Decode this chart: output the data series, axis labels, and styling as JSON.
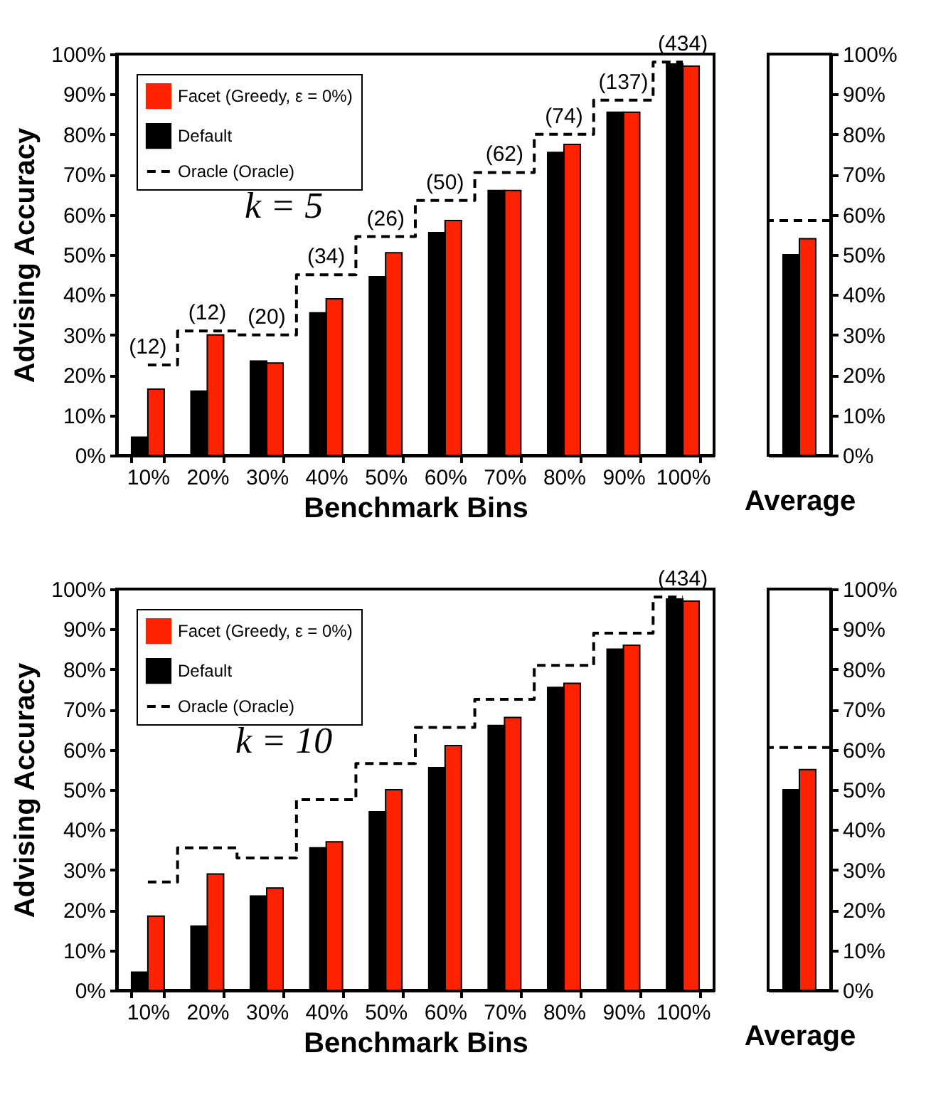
{
  "chart_data": [
    {
      "type": "bar",
      "categories": [
        "10%",
        "20%",
        "30%",
        "40%",
        "50%",
        "60%",
        "70%",
        "80%",
        "90%",
        "100%"
      ],
      "xlabel": "Benchmark Bins",
      "ylabel": "Advising Accuracy",
      "ylim": [
        0,
        100
      ],
      "yticks": [
        {
          "value": 0,
          "label": "0%"
        },
        {
          "value": 10,
          "label": "10%"
        },
        {
          "value": 20,
          "label": "20%"
        },
        {
          "value": 30,
          "label": "30%"
        },
        {
          "value": 40,
          "label": "40%"
        },
        {
          "value": 50,
          "label": "50%"
        },
        {
          "value": 60,
          "label": "60%"
        },
        {
          "value": 70,
          "label": "70%"
        },
        {
          "value": 80,
          "label": "80%"
        },
        {
          "value": 90,
          "label": "90%"
        },
        {
          "value": 100,
          "label": "100%"
        }
      ],
      "legend": "top left",
      "series": [
        {
          "name": "Facet (Greedy, ε = 0%)",
          "color": "#ff2200",
          "values": [
            16.5,
            30,
            23,
            39,
            50.5,
            58.5,
            66,
            77.5,
            85.5,
            97
          ]
        },
        {
          "name": "Default",
          "color": "#000000",
          "values": [
            4.5,
            16,
            23.5,
            35.5,
            44.5,
            55.5,
            66,
            75.5,
            85.5,
            97.5
          ]
        },
        {
          "name": "Oracle (Oracle)",
          "type": "step",
          "color": "#000000",
          "line_style": "dashed",
          "values": [
            22.5,
            31,
            30,
            45,
            54.5,
            63.5,
            70.5,
            80,
            88.5,
            98
          ]
        }
      ],
      "annotations": [
        "k = 5",
        {
          "text": "(12)",
          "x": "10%",
          "y": 22.5
        },
        {
          "text": "(12)",
          "x": "20%",
          "y": 31
        },
        {
          "text": "(20)",
          "x": "30%",
          "y": 30
        },
        {
          "text": "(34)",
          "x": "40%",
          "y": 45
        },
        {
          "text": "(26)",
          "x": "50%",
          "y": 54.5
        },
        {
          "text": "(50)",
          "x": "60%",
          "y": 63.5
        },
        {
          "text": "(62)",
          "x": "70%",
          "y": 70.5
        },
        {
          "text": "(74)",
          "x": "80%",
          "y": 80
        },
        {
          "text": "(137)",
          "x": "90%",
          "y": 88.5
        },
        {
          "text": "(434)",
          "x": "100%",
          "y": 98
        }
      ]
    },
    {
      "type": "bar",
      "categories": [
        null
      ],
      "xlabel": "Average",
      "ylim": [
        0,
        100
      ],
      "yticks": [
        {
          "value": 0,
          "label": "0%"
        },
        {
          "value": 10,
          "label": "10%"
        },
        {
          "value": 20,
          "label": "20%"
        },
        {
          "value": 30,
          "label": "30%"
        },
        {
          "value": 40,
          "label": "40%"
        },
        {
          "value": 50,
          "label": "50%"
        },
        {
          "value": 60,
          "label": "60%"
        },
        {
          "value": 70,
          "label": "70%"
        },
        {
          "value": 80,
          "label": "80%"
        },
        {
          "value": 90,
          "label": "90%"
        },
        {
          "value": 100,
          "label": "100%"
        }
      ],
      "series": [
        {
          "color": "#000000",
          "values": [
            50
          ]
        },
        {
          "color": "#ff2200",
          "values": [
            54
          ]
        }
      ],
      "ref_lines": [
        {
          "axis": "y",
          "value": 58.5,
          "color": "#000000",
          "line_style": "dashed"
        }
      ]
    },
    {
      "type": "bar",
      "categories": [
        "10%",
        "20%",
        "30%",
        "40%",
        "50%",
        "60%",
        "70%",
        "80%",
        "90%",
        "100%"
      ],
      "xlabel": "Benchmark Bins",
      "ylabel": "Advising Accuracy",
      "ylim": [
        0,
        100
      ],
      "yticks": [
        {
          "value": 0,
          "label": "0%"
        },
        {
          "value": 10,
          "label": "10%"
        },
        {
          "value": 20,
          "label": "20%"
        },
        {
          "value": 30,
          "label": "30%"
        },
        {
          "value": 40,
          "label": "40%"
        },
        {
          "value": 50,
          "label": "50%"
        },
        {
          "value": 60,
          "label": "60%"
        },
        {
          "value": 70,
          "label": "70%"
        },
        {
          "value": 80,
          "label": "80%"
        },
        {
          "value": 90,
          "label": "90%"
        },
        {
          "value": 100,
          "label": "100%"
        }
      ],
      "legend": "top left",
      "series": [
        {
          "name": "Facet (Greedy, ε = 0%)",
          "color": "#ff2200",
          "values": [
            18.5,
            29,
            25.5,
            37,
            50,
            61,
            68,
            76.5,
            86,
            97
          ]
        },
        {
          "name": "Default",
          "color": "#000000",
          "values": [
            4.5,
            16,
            23.5,
            35.5,
            44.5,
            55.5,
            66,
            75.5,
            85,
            97.5
          ]
        },
        {
          "name": "Oracle (Oracle)",
          "type": "step",
          "color": "#000000",
          "line_style": "dashed",
          "values": [
            27,
            35.5,
            33,
            47.5,
            56.5,
            65.5,
            72.5,
            81,
            89,
            98
          ]
        }
      ],
      "annotations": [
        "k = 10",
        {
          "text": "(434)",
          "x": "100%",
          "y": 98
        }
      ]
    },
    {
      "type": "bar",
      "categories": [
        null
      ],
      "xlabel": "Average",
      "ylim": [
        0,
        100
      ],
      "yticks": [
        {
          "value": 0,
          "label": "0%"
        },
        {
          "value": 10,
          "label": "10%"
        },
        {
          "value": 20,
          "label": "20%"
        },
        {
          "value": 30,
          "label": "30%"
        },
        {
          "value": 40,
          "label": "40%"
        },
        {
          "value": 50,
          "label": "50%"
        },
        {
          "value": 60,
          "label": "60%"
        },
        {
          "value": 70,
          "label": "70%"
        },
        {
          "value": 80,
          "label": "80%"
        },
        {
          "value": 90,
          "label": "90%"
        },
        {
          "value": 100,
          "label": "100%"
        }
      ],
      "series": [
        {
          "color": "#000000",
          "values": [
            50
          ]
        },
        {
          "color": "#ff2200",
          "values": [
            55
          ]
        }
      ],
      "ref_lines": [
        {
          "axis": "y",
          "value": 60.5,
          "color": "#000000",
          "line_style": "dashed"
        }
      ]
    }
  ]
}
